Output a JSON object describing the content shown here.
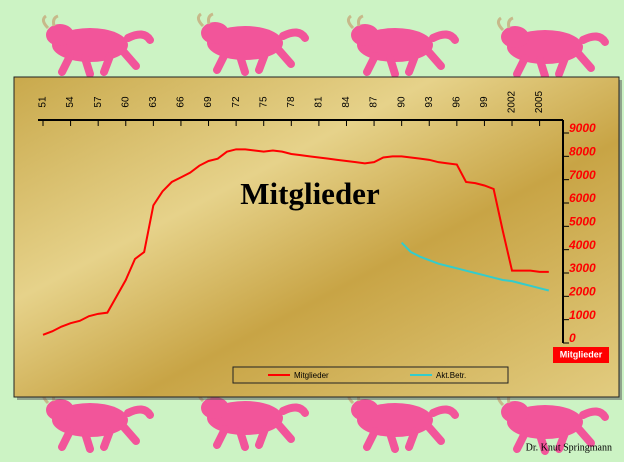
{
  "chart_data": {
    "type": "line",
    "title": "Mitglieder",
    "y_label": "Mitglieder",
    "x": [
      1951,
      1952,
      1953,
      1954,
      1955,
      1956,
      1957,
      1958,
      1959,
      1960,
      1961,
      1962,
      1963,
      1964,
      1965,
      1966,
      1967,
      1968,
      1969,
      1970,
      1971,
      1972,
      1973,
      1974,
      1975,
      1976,
      1977,
      1978,
      1979,
      1980,
      1981,
      1982,
      1983,
      1984,
      1985,
      1986,
      1987,
      1988,
      1989,
      1990,
      1991,
      1992,
      1993,
      1994,
      1995,
      1996,
      1997,
      1998,
      1999,
      2000,
      2001,
      2002,
      2003,
      2004,
      2005,
      2006
    ],
    "series": [
      {
        "name": "Mitglieder",
        "color": "#ff0000",
        "values": [
          350,
          500,
          700,
          850,
          950,
          1150,
          1250,
          1300,
          2000,
          2700,
          3600,
          3900,
          5900,
          6500,
          6900,
          7100,
          7300,
          7600,
          7800,
          7900,
          8200,
          8300,
          8300,
          8250,
          8200,
          8250,
          8200,
          8100,
          8050,
          8000,
          7950,
          7900,
          7850,
          7800,
          7750,
          7700,
          7750,
          7950,
          8000,
          8000,
          7950,
          7900,
          7850,
          7750,
          7700,
          7650,
          6900,
          6850,
          6750,
          6600,
          4800,
          3100,
          3100,
          3100,
          3050,
          3050
        ]
      },
      {
        "name": "Akt.Betr.",
        "color": "#33cccc",
        "values": [
          null,
          null,
          null,
          null,
          null,
          null,
          null,
          null,
          null,
          null,
          null,
          null,
          null,
          null,
          null,
          null,
          null,
          null,
          null,
          null,
          null,
          null,
          null,
          null,
          null,
          null,
          null,
          null,
          null,
          null,
          null,
          null,
          null,
          null,
          null,
          null,
          null,
          null,
          null,
          4300,
          3900,
          3700,
          3550,
          3400,
          3300,
          3200,
          3100,
          3000,
          2900,
          2800,
          2700,
          2650,
          2550,
          2450,
          2350,
          2250
        ]
      }
    ],
    "xlim": [
      1951,
      2007
    ],
    "xticks": [
      {
        "value": 1951,
        "label": "51"
      },
      {
        "value": 1954,
        "label": "54"
      },
      {
        "value": 1957,
        "label": "57"
      },
      {
        "value": 1960,
        "label": "60"
      },
      {
        "value": 1963,
        "label": "63"
      },
      {
        "value": 1966,
        "label": "66"
      },
      {
        "value": 1969,
        "label": "69"
      },
      {
        "value": 1972,
        "label": "72"
      },
      {
        "value": 1975,
        "label": "75"
      },
      {
        "value": 1978,
        "label": "78"
      },
      {
        "value": 1981,
        "label": "81"
      },
      {
        "value": 1984,
        "label": "84"
      },
      {
        "value": 1987,
        "label": "87"
      },
      {
        "value": 1990,
        "label": "90"
      },
      {
        "value": 1993,
        "label": "93"
      },
      {
        "value": 1996,
        "label": "96"
      },
      {
        "value": 1999,
        "label": "99"
      },
      2002,
      2005
    ],
    "ylim": [
      0,
      9000
    ],
    "yticks": [
      0,
      1000,
      2000,
      3000,
      4000,
      5000,
      6000,
      7000,
      8000,
      9000
    ],
    "legend": "bottom"
  },
  "footer": "Dr. Knut Springmann"
}
